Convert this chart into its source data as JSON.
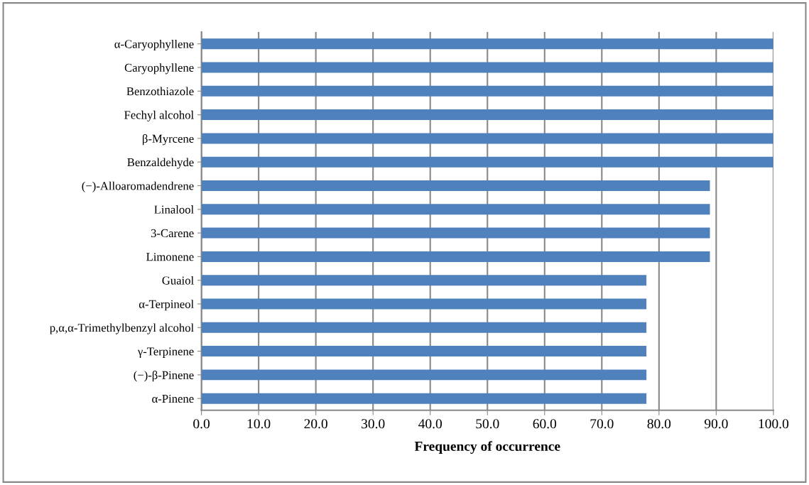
{
  "chart_data": {
    "type": "bar",
    "orientation": "horizontal",
    "xlabel": "Frequency of occurrence",
    "categories": [
      "α-Caryophyllene",
      "Caryophyllene",
      "Benzothiazole",
      "Fechyl alcohol",
      "β-Myrcene",
      "Benzaldehyde",
      "(−)-Alloaromadendrene",
      "Linalool",
      "3-Carene",
      "Limonene",
      "Guaiol",
      "α-Terpineol",
      "p,α,α-Trimethylbenzyl alcohol",
      "γ-Terpinene",
      "(−)-β-Pinene",
      "α-Pinene"
    ],
    "values": [
      100,
      100,
      100,
      100,
      100,
      100,
      88.9,
      88.9,
      88.9,
      88.9,
      77.8,
      77.8,
      77.8,
      77.8,
      77.8,
      77.8
    ],
    "color": "#4f81bd",
    "xlim": [
      0,
      100
    ],
    "xticks": [
      {
        "value": 0,
        "label": "0.0"
      },
      {
        "value": 10,
        "label": "10.0"
      },
      {
        "value": 20,
        "label": "20.0"
      },
      {
        "value": 30,
        "label": "30.0"
      },
      {
        "value": 40,
        "label": "40.0"
      },
      {
        "value": 50,
        "label": "50.0"
      },
      {
        "value": 60,
        "label": "60.0"
      },
      {
        "value": 70,
        "label": "70.0"
      },
      {
        "value": 80,
        "label": "80.0"
      },
      {
        "value": 90,
        "label": "90.0"
      },
      {
        "value": 100,
        "label": "100.0"
      }
    ],
    "grid": "x",
    "legend": false
  }
}
